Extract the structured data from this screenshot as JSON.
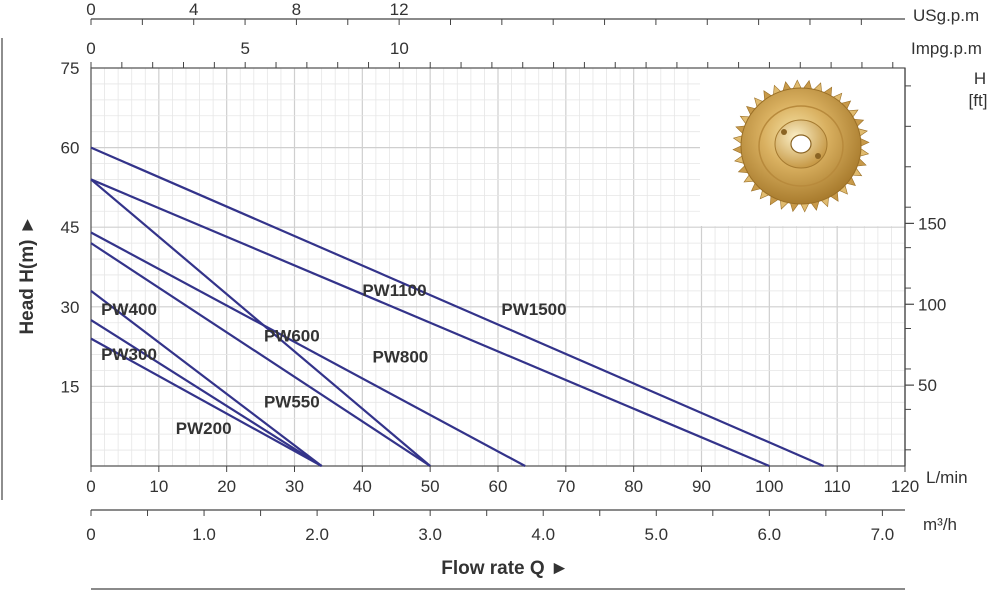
{
  "chart_data": {
    "type": "line",
    "xlabel": "Flow rate Q ►",
    "ylabel": "Head H(m) ►",
    "xlim": [
      0,
      120
    ],
    "ylim": [
      0,
      75
    ],
    "x_unit": "L/min",
    "x_ticks": [
      0,
      10,
      20,
      30,
      40,
      50,
      60,
      70,
      80,
      90,
      100,
      110,
      120
    ],
    "y_ticks": [
      15,
      30,
      45,
      60,
      75
    ],
    "secondary_x_m3h": {
      "unit": "m³/h",
      "ticks": [
        0,
        1.0,
        2.0,
        3.0,
        4.0,
        5.0,
        6.0,
        7.0
      ],
      "labels": [
        "0",
        "1.0",
        "2.0",
        "3.0",
        "4.0",
        "5.0",
        "6.0",
        "7.0"
      ]
    },
    "top_x_usgpm": {
      "unit": "USg.p.m",
      "ticks": [
        0,
        4,
        8,
        12
      ]
    },
    "top_x_impgpm": {
      "unit": "Impg.p.m",
      "ticks": [
        0,
        5,
        10
      ]
    },
    "right_y_ft": {
      "label": "H\n[ft]",
      "ticks": [
        50,
        100,
        150
      ]
    },
    "grid": true,
    "series": [
      {
        "name": "PW200",
        "points": [
          [
            0,
            24
          ],
          [
            34,
            0
          ]
        ]
      },
      {
        "name": "PW300",
        "points": [
          [
            0,
            27.5
          ],
          [
            34,
            0
          ]
        ]
      },
      {
        "name": "PW400",
        "points": [
          [
            0,
            33
          ],
          [
            34,
            0
          ]
        ]
      },
      {
        "name": "PW550",
        "points": [
          [
            0,
            42
          ],
          [
            50,
            0
          ]
        ]
      },
      {
        "name": "PW600",
        "points": [
          [
            0,
            44
          ],
          [
            64,
            0
          ]
        ]
      },
      {
        "name": "PW800",
        "points": [
          [
            0,
            54
          ],
          [
            50,
            0
          ]
        ]
      },
      {
        "name": "PW1100",
        "points": [
          [
            0,
            60
          ],
          [
            108,
            0
          ]
        ]
      },
      {
        "name": "PW1500",
        "points": [
          [
            0,
            54
          ],
          [
            100,
            0
          ]
        ]
      }
    ],
    "curve_labels": [
      {
        "text": "PW400",
        "x": 1.5,
        "y": 28.5
      },
      {
        "text": "PW300",
        "x": 1.5,
        "y": 20
      },
      {
        "text": "PW200",
        "x": 12.5,
        "y": 6
      },
      {
        "text": "PW550",
        "x": 25.5,
        "y": 11
      },
      {
        "text": "PW600",
        "x": 25.5,
        "y": 23.5
      },
      {
        "text": "PW800",
        "x": 41.5,
        "y": 19.5
      },
      {
        "text": "PW1100",
        "x": 40,
        "y": 32
      },
      {
        "text": "PW1500",
        "x": 60.5,
        "y": 28.5
      }
    ],
    "line_color": "#33338a",
    "grid_color": "#dcdcdc",
    "image": "brass-impeller"
  }
}
